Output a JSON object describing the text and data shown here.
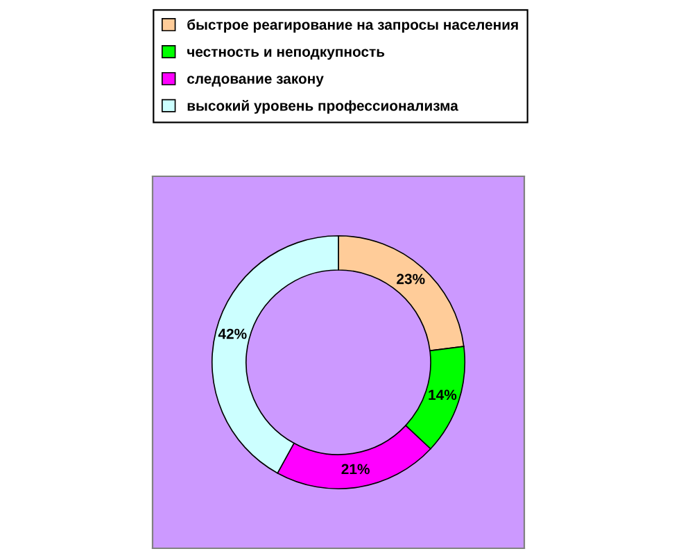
{
  "chart_data": {
    "type": "donut",
    "categories": [
      "быстрое реагирование на запросы населения",
      "честность и неподкупность",
      "следование закону",
      "высокий уровень профессионализма"
    ],
    "values": [
      23,
      14,
      21,
      42
    ],
    "colors": [
      "#ffcc99",
      "#00ff00",
      "#ff00ff",
      "#ccffff"
    ],
    "value_labels": [
      "23%",
      "14%",
      "21%",
      "42%"
    ],
    "legend": "top"
  }
}
